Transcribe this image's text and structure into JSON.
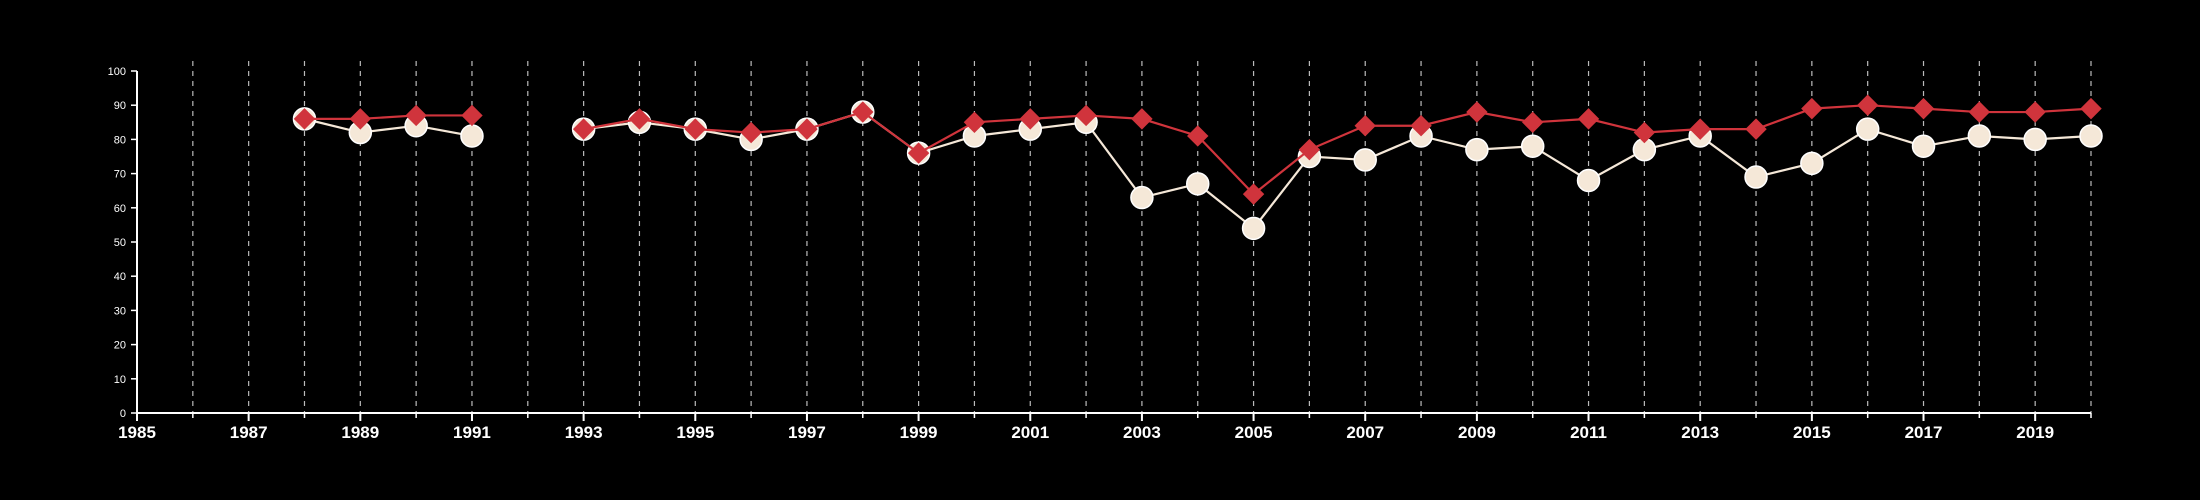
{
  "chart_data": {
    "type": "line",
    "title": "",
    "xlabel": "",
    "ylabel": "",
    "xlim": [
      1985,
      2020
    ],
    "ylim": [
      0,
      100
    ],
    "x_tick_labels": [
      "1985",
      "1987",
      "1989",
      "1991",
      "1993",
      "1995",
      "1997",
      "1999",
      "2001",
      "2003",
      "2005",
      "2007",
      "2009",
      "2011",
      "2013",
      "2015",
      "2017",
      "2019"
    ],
    "y_tick_labels": [
      "0",
      "10",
      "20",
      "30",
      "40",
      "50",
      "60",
      "70",
      "80",
      "90",
      "100"
    ],
    "grid": "vertical dashed lines at each year",
    "x": [
      1985,
      1986,
      1987,
      1988,
      1989,
      1990,
      1991,
      1992,
      1993,
      1994,
      1995,
      1996,
      1997,
      1998,
      1999,
      2000,
      2001,
      2002,
      2003,
      2004,
      2005,
      2006,
      2007,
      2008,
      2009,
      2010,
      2011,
      2012,
      2013,
      2014,
      2015,
      2016,
      2017,
      2018,
      2019,
      2020
    ],
    "series": [
      {
        "color": "#f5e8d8",
        "marker": "circle",
        "values": [
          null,
          null,
          null,
          86,
          82,
          84,
          81,
          null,
          83,
          85,
          83,
          80,
          83,
          88,
          76,
          81,
          83,
          85,
          63,
          67,
          54,
          75,
          74,
          81,
          77,
          78,
          68,
          77,
          81,
          69,
          73,
          83,
          78,
          81,
          80,
          81
        ]
      },
      {
        "color": "#d0343c",
        "marker": "diamond",
        "values": [
          null,
          null,
          null,
          86,
          86,
          87,
          87,
          null,
          83,
          86,
          83,
          82,
          83,
          88,
          76,
          85,
          86,
          87,
          86,
          81,
          64,
          77,
          84,
          84,
          88,
          85,
          86,
          82,
          83,
          83,
          89,
          90,
          89,
          88,
          88,
          89
        ]
      }
    ]
  }
}
